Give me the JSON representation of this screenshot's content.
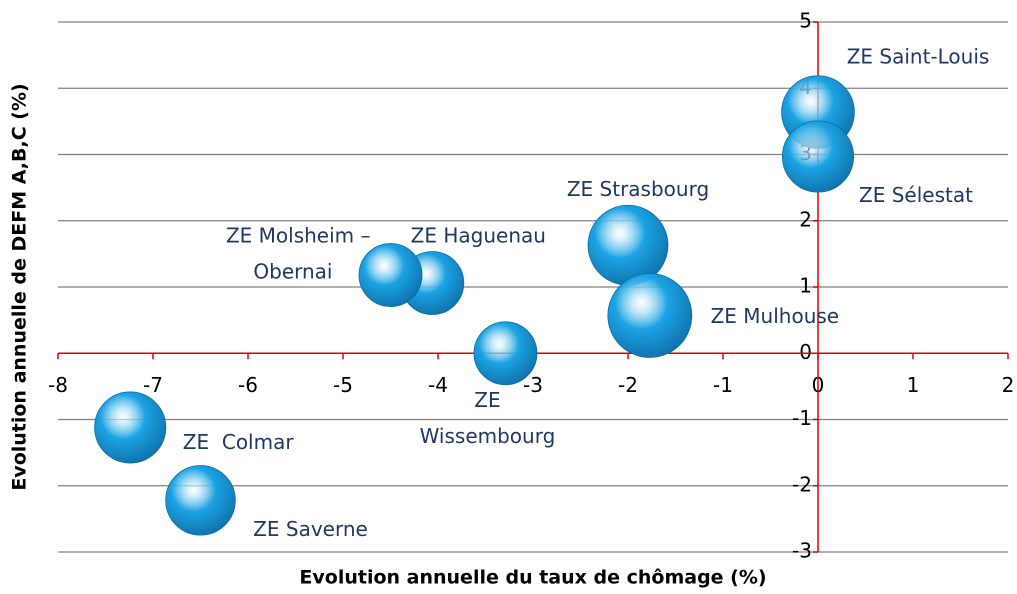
{
  "chart_data": {
    "type": "bubble",
    "x_label": "Evolution annuelle du taux de chômage (%)",
    "y_label": "Evolution annuelle de DEFM A,B,C (%)",
    "xlim": [
      -8,
      2
    ],
    "xticks": [
      -8,
      -7,
      -6,
      -5,
      -4,
      -3,
      -2,
      -1,
      0,
      1,
      2
    ],
    "ylim": [
      -3,
      5
    ],
    "yticks": [
      -3,
      -2,
      -1,
      0,
      1,
      2,
      3,
      4,
      5
    ],
    "grid": true,
    "color": "#1ba3e3",
    "labels": [
      [
        "ZE Saint-Louis"
      ],
      [
        "ZE Sélestat"
      ],
      [
        "ZE Strasbourg"
      ],
      [
        "ZE Mulhouse"
      ],
      [
        "ZE Haguenau"
      ],
      [
        "ZE Molsheim –",
        "Obernai"
      ],
      [
        "ZE",
        "Wissembourg"
      ],
      [
        "ZE  Colmar"
      ],
      [
        "ZE Saverne"
      ]
    ],
    "x": [
      0,
      0,
      -2.0,
      -1.77,
      -4.06,
      -4.5,
      -3.29,
      -7.24,
      -6.5
    ],
    "y": [
      3.64,
      2.97,
      1.63,
      0.57,
      1.06,
      1.18,
      0.0,
      -1.12,
      -2.22
    ],
    "sizes": [
      12,
      11.5,
      14.5,
      16,
      9,
      9,
      9,
      11.5,
      11
    ]
  }
}
